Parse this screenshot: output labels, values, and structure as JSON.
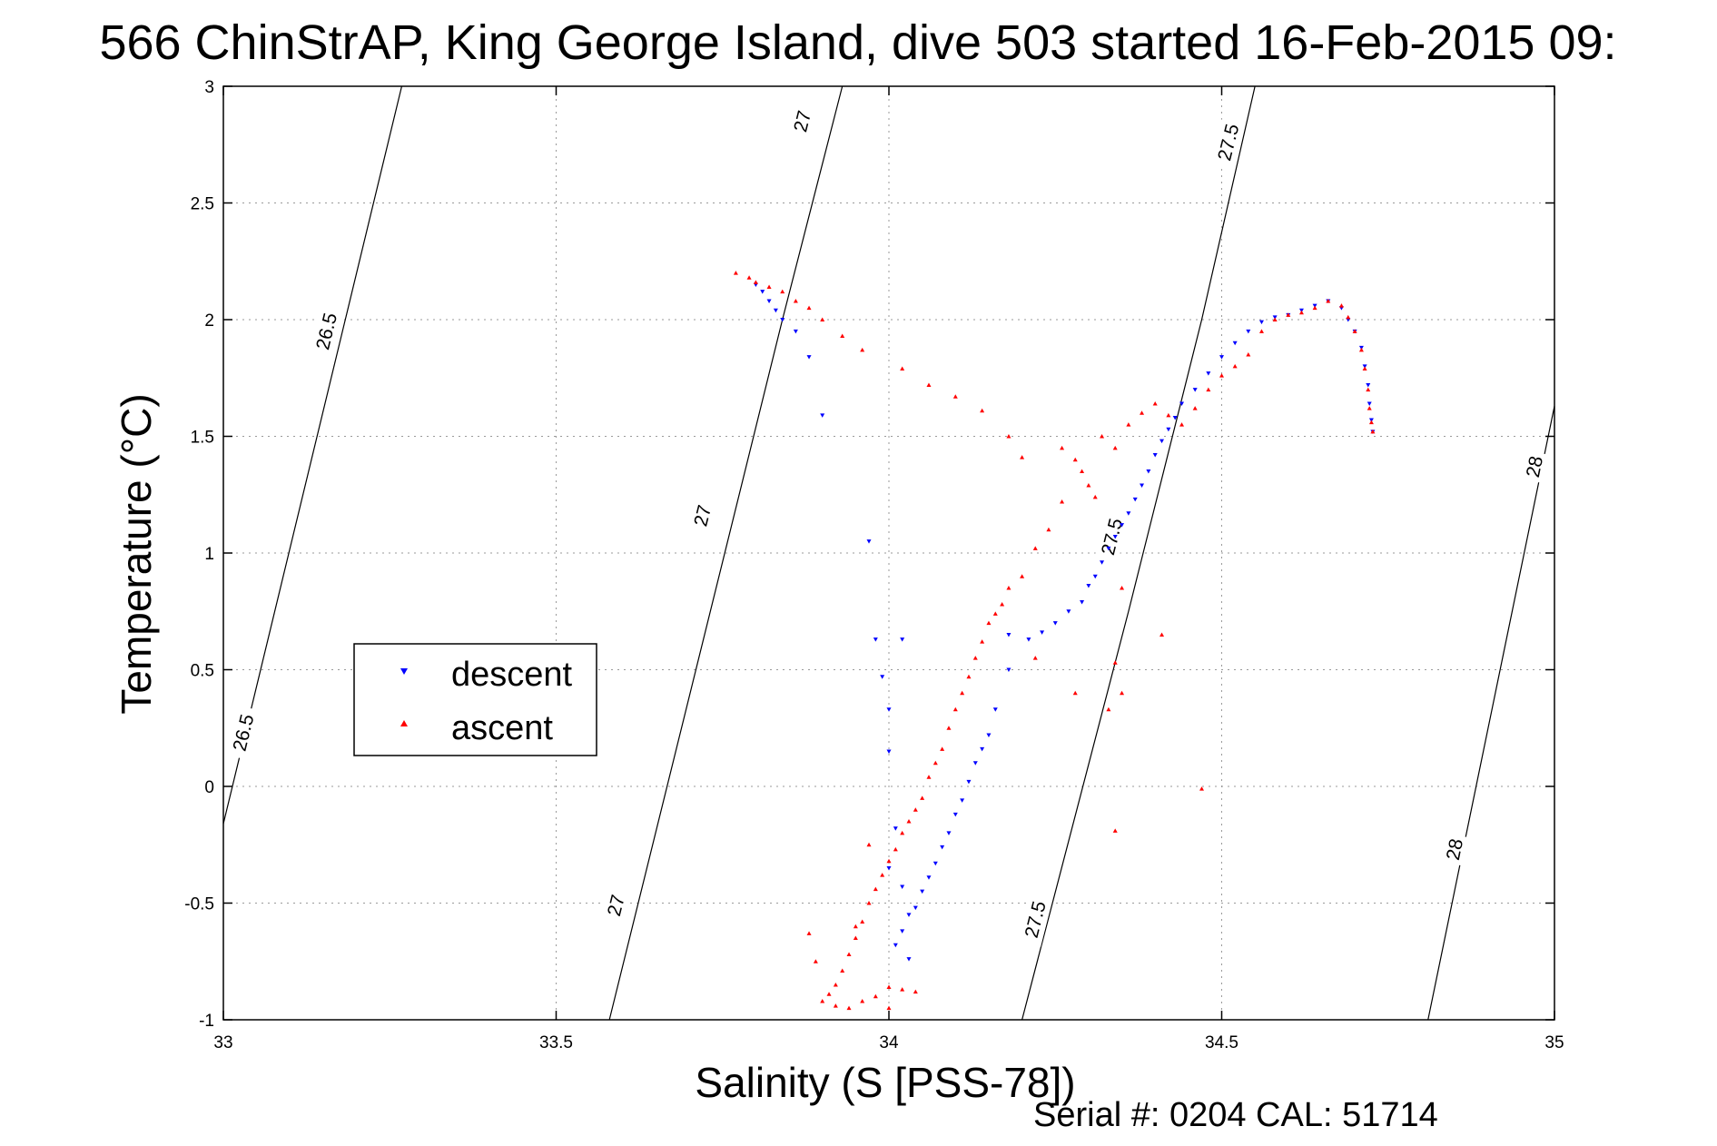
{
  "chart_data": {
    "type": "scatter",
    "title": "566 ChinStrAP, King George Island, dive 503 started 16-Feb-2015 09:",
    "xlabel": "Salinity (S [PSS-78])",
    "ylabel": "Temperature (°C)",
    "footer": "Serial #: 0204  CAL: 51714",
    "xlim": [
      33,
      35
    ],
    "ylim": [
      -1,
      3
    ],
    "xticks": [
      33,
      33.5,
      34,
      34.5,
      35
    ],
    "xtick_labels": [
      "33",
      "33.5",
      "34",
      "34.5",
      "35"
    ],
    "yticks": [
      -1,
      -0.5,
      0,
      0.5,
      1,
      1.5,
      2,
      2.5,
      3
    ],
    "ytick_labels": [
      "-1",
      "-0.5",
      "0",
      "0.5",
      "1",
      "1.5",
      "2",
      "2.5",
      "3"
    ],
    "grid": true,
    "legend": {
      "placement": "middle-left",
      "entries": [
        "descent",
        "ascent"
      ]
    },
    "contours": [
      {
        "label": "26.5",
        "points": [
          [
            33.0,
            -0.16
          ],
          [
            33.268,
            3.0
          ]
        ],
        "label_positions": [
          [
            33.155,
            1.95
          ],
          [
            33.03,
            0.23
          ]
        ]
      },
      {
        "label": "27",
        "points": [
          [
            33.58,
            -1.0
          ],
          [
            33.84,
            2.0
          ],
          [
            33.93,
            3.0
          ]
        ],
        "label_positions": [
          [
            33.87,
            2.85
          ],
          [
            33.72,
            1.16
          ],
          [
            33.59,
            -0.51
          ]
        ]
      },
      {
        "label": "27.5",
        "points": [
          [
            34.2,
            -1.0
          ],
          [
            34.36,
            0.75
          ],
          [
            34.47,
            2.0
          ],
          [
            34.55,
            3.0
          ]
        ],
        "label_positions": [
          [
            34.51,
            2.76
          ],
          [
            34.335,
            1.07
          ],
          [
            34.22,
            -0.57
          ]
        ]
      },
      {
        "label": "28",
        "points": [
          [
            34.81,
            -1.0
          ],
          [
            35.0,
            1.63
          ]
        ],
        "label_positions": [
          [
            34.97,
            1.37
          ],
          [
            34.85,
            -0.27
          ]
        ]
      }
    ],
    "series": [
      {
        "name": "descent",
        "color": "#0000ff",
        "marker": "triangle-down",
        "points": [
          [
            33.8,
            2.15
          ],
          [
            33.81,
            2.12
          ],
          [
            33.82,
            2.08
          ],
          [
            33.83,
            2.04
          ],
          [
            33.84,
            2.0
          ],
          [
            33.86,
            1.95
          ],
          [
            33.88,
            1.84
          ],
          [
            33.9,
            1.59
          ],
          [
            33.97,
            1.05
          ],
          [
            33.98,
            0.63
          ],
          [
            34.02,
            0.63
          ],
          [
            33.99,
            0.47
          ],
          [
            34.0,
            0.33
          ],
          [
            34.0,
            0.15
          ],
          [
            34.01,
            -0.18
          ],
          [
            34.0,
            -0.35
          ],
          [
            34.02,
            -0.43
          ],
          [
            34.03,
            -0.55
          ],
          [
            34.02,
            -0.62
          ],
          [
            34.01,
            -0.68
          ],
          [
            34.03,
            -0.74
          ],
          [
            34.04,
            -0.52
          ],
          [
            34.05,
            -0.45
          ],
          [
            34.06,
            -0.39
          ],
          [
            34.07,
            -0.33
          ],
          [
            34.08,
            -0.26
          ],
          [
            34.09,
            -0.2
          ],
          [
            34.1,
            -0.12
          ],
          [
            34.11,
            -0.06
          ],
          [
            34.12,
            0.02
          ],
          [
            34.13,
            0.1
          ],
          [
            34.14,
            0.16
          ],
          [
            34.15,
            0.22
          ],
          [
            34.16,
            0.33
          ],
          [
            34.18,
            0.5
          ],
          [
            34.18,
            0.65
          ],
          [
            34.21,
            0.63
          ],
          [
            34.23,
            0.66
          ],
          [
            34.25,
            0.7
          ],
          [
            34.27,
            0.75
          ],
          [
            34.29,
            0.79
          ],
          [
            34.3,
            0.86
          ],
          [
            34.31,
            0.9
          ],
          [
            34.32,
            0.96
          ],
          [
            34.33,
            1.02
          ],
          [
            34.34,
            1.07
          ],
          [
            34.35,
            1.12
          ],
          [
            34.36,
            1.17
          ],
          [
            34.37,
            1.23
          ],
          [
            34.38,
            1.29
          ],
          [
            34.39,
            1.35
          ],
          [
            34.4,
            1.42
          ],
          [
            34.41,
            1.48
          ],
          [
            34.42,
            1.53
          ],
          [
            34.43,
            1.58
          ],
          [
            34.44,
            1.64
          ],
          [
            34.46,
            1.7
          ],
          [
            34.48,
            1.77
          ],
          [
            34.5,
            1.84
          ],
          [
            34.52,
            1.9
          ],
          [
            34.54,
            1.95
          ],
          [
            34.56,
            1.99
          ],
          [
            34.58,
            2.01
          ],
          [
            34.6,
            2.02
          ],
          [
            34.62,
            2.04
          ],
          [
            34.64,
            2.06
          ],
          [
            34.66,
            2.08
          ],
          [
            34.68,
            2.05
          ],
          [
            34.69,
            2.0
          ],
          [
            34.7,
            1.95
          ],
          [
            34.71,
            1.88
          ],
          [
            34.715,
            1.8
          ],
          [
            34.72,
            1.72
          ],
          [
            34.722,
            1.64
          ],
          [
            34.725,
            1.57
          ],
          [
            34.727,
            1.52
          ]
        ]
      },
      {
        "name": "ascent",
        "color": "#ff0000",
        "marker": "triangle-up",
        "points": [
          [
            33.77,
            2.2
          ],
          [
            33.79,
            2.18
          ],
          [
            33.8,
            2.16
          ],
          [
            33.82,
            2.14
          ],
          [
            33.84,
            2.12
          ],
          [
            33.86,
            2.08
          ],
          [
            33.88,
            2.05
          ],
          [
            33.9,
            2.0
          ],
          [
            33.93,
            1.93
          ],
          [
            33.96,
            1.87
          ],
          [
            34.02,
            1.79
          ],
          [
            34.06,
            1.72
          ],
          [
            34.1,
            1.67
          ],
          [
            34.14,
            1.61
          ],
          [
            34.18,
            1.5
          ],
          [
            34.2,
            1.41
          ],
          [
            34.26,
            1.45
          ],
          [
            34.28,
            1.4
          ],
          [
            34.29,
            1.35
          ],
          [
            34.3,
            1.29
          ],
          [
            34.31,
            1.24
          ],
          [
            34.32,
            1.5
          ],
          [
            34.34,
            1.45
          ],
          [
            34.36,
            1.55
          ],
          [
            34.38,
            1.6
          ],
          [
            34.4,
            1.64
          ],
          [
            34.42,
            1.59
          ],
          [
            34.44,
            1.55
          ],
          [
            34.46,
            1.62
          ],
          [
            34.48,
            1.7
          ],
          [
            34.5,
            1.76
          ],
          [
            34.52,
            1.8
          ],
          [
            34.54,
            1.85
          ],
          [
            34.56,
            1.95
          ],
          [
            34.58,
            2.0
          ],
          [
            34.6,
            2.02
          ],
          [
            34.62,
            2.03
          ],
          [
            34.64,
            2.05
          ],
          [
            34.66,
            2.08
          ],
          [
            34.68,
            2.06
          ],
          [
            34.69,
            2.01
          ],
          [
            34.7,
            1.95
          ],
          [
            34.71,
            1.87
          ],
          [
            34.715,
            1.79
          ],
          [
            34.72,
            1.7
          ],
          [
            34.722,
            1.62
          ],
          [
            34.725,
            1.56
          ],
          [
            34.727,
            1.52
          ],
          [
            34.26,
            1.22
          ],
          [
            34.24,
            1.1
          ],
          [
            34.22,
            1.02
          ],
          [
            34.2,
            0.9
          ],
          [
            34.18,
            0.85
          ],
          [
            34.17,
            0.78
          ],
          [
            34.16,
            0.74
          ],
          [
            34.15,
            0.7
          ],
          [
            34.14,
            0.62
          ],
          [
            34.13,
            0.55
          ],
          [
            34.12,
            0.47
          ],
          [
            34.11,
            0.4
          ],
          [
            34.1,
            0.33
          ],
          [
            34.09,
            0.25
          ],
          [
            34.08,
            0.16
          ],
          [
            34.07,
            0.1
          ],
          [
            34.06,
            0.04
          ],
          [
            34.05,
            -0.05
          ],
          [
            34.04,
            -0.1
          ],
          [
            34.03,
            -0.15
          ],
          [
            34.02,
            -0.2
          ],
          [
            34.01,
            -0.27
          ],
          [
            34.0,
            -0.32
          ],
          [
            33.99,
            -0.38
          ],
          [
            33.98,
            -0.44
          ],
          [
            33.97,
            -0.5
          ],
          [
            33.96,
            -0.58
          ],
          [
            33.95,
            -0.65
          ],
          [
            33.94,
            -0.72
          ],
          [
            33.93,
            -0.79
          ],
          [
            33.92,
            -0.85
          ],
          [
            33.91,
            -0.89
          ],
          [
            33.9,
            -0.92
          ],
          [
            33.92,
            -0.94
          ],
          [
            33.94,
            -0.95
          ],
          [
            33.96,
            -0.92
          ],
          [
            33.98,
            -0.9
          ],
          [
            34.0,
            -0.95
          ],
          [
            34.02,
            -0.87
          ],
          [
            34.04,
            -0.88
          ],
          [
            33.89,
            -0.75
          ],
          [
            33.88,
            -0.63
          ],
          [
            33.95,
            -0.6
          ],
          [
            33.97,
            -0.25
          ],
          [
            34.0,
            -0.86
          ],
          [
            34.34,
            0.53
          ],
          [
            34.35,
            0.4
          ],
          [
            34.33,
            0.33
          ],
          [
            34.41,
            0.65
          ],
          [
            34.47,
            -0.01
          ],
          [
            34.34,
            -0.19
          ],
          [
            34.35,
            0.85
          ],
          [
            34.22,
            0.55
          ],
          [
            34.28,
            0.4
          ]
        ]
      }
    ]
  }
}
